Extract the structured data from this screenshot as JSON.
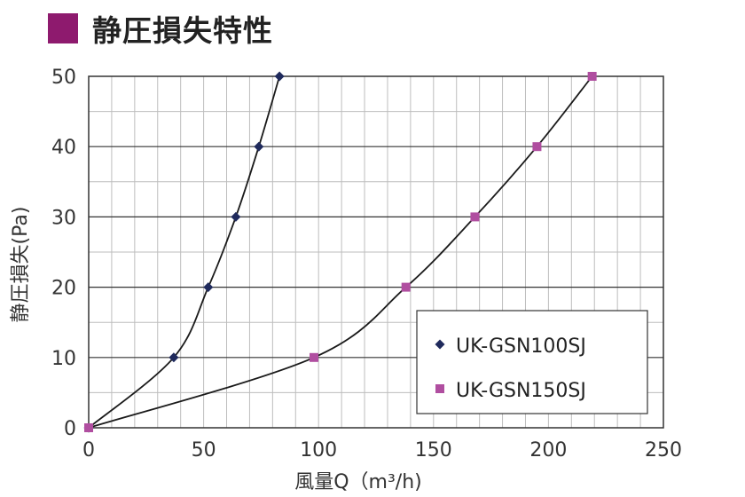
{
  "title": "静圧損失特性",
  "colors": {
    "title_square": "#8e1a6e",
    "series_1_marker": "#1f2a5c",
    "series_2_marker": "#b04ea0",
    "curve": "#1a1a1a",
    "grid": "#bdbdbd",
    "grid_major": "#333333"
  },
  "chart_data": {
    "type": "line",
    "xlabel": "風量Q（m³/h)",
    "ylabel": "静圧損失(Pa)",
    "xlim": [
      0,
      250
    ],
    "ylim": [
      0,
      50
    ],
    "x_ticks": [
      "0",
      "50",
      "100",
      "150",
      "200",
      "250"
    ],
    "y_ticks": [
      "0",
      "10",
      "20",
      "30",
      "40",
      "50"
    ],
    "grid": true,
    "legend_position": "bottom-right",
    "series": [
      {
        "name": "UK-GSN100SJ",
        "marker": "diamond",
        "x": [
          0,
          37,
          52,
          64,
          74,
          83
        ],
        "y": [
          0,
          10,
          20,
          30,
          40,
          50
        ]
      },
      {
        "name": "UK-GSN150SJ",
        "marker": "square",
        "x": [
          0,
          98,
          138,
          168,
          195,
          219
        ],
        "y": [
          0,
          10,
          20,
          30,
          40,
          50
        ]
      }
    ]
  }
}
